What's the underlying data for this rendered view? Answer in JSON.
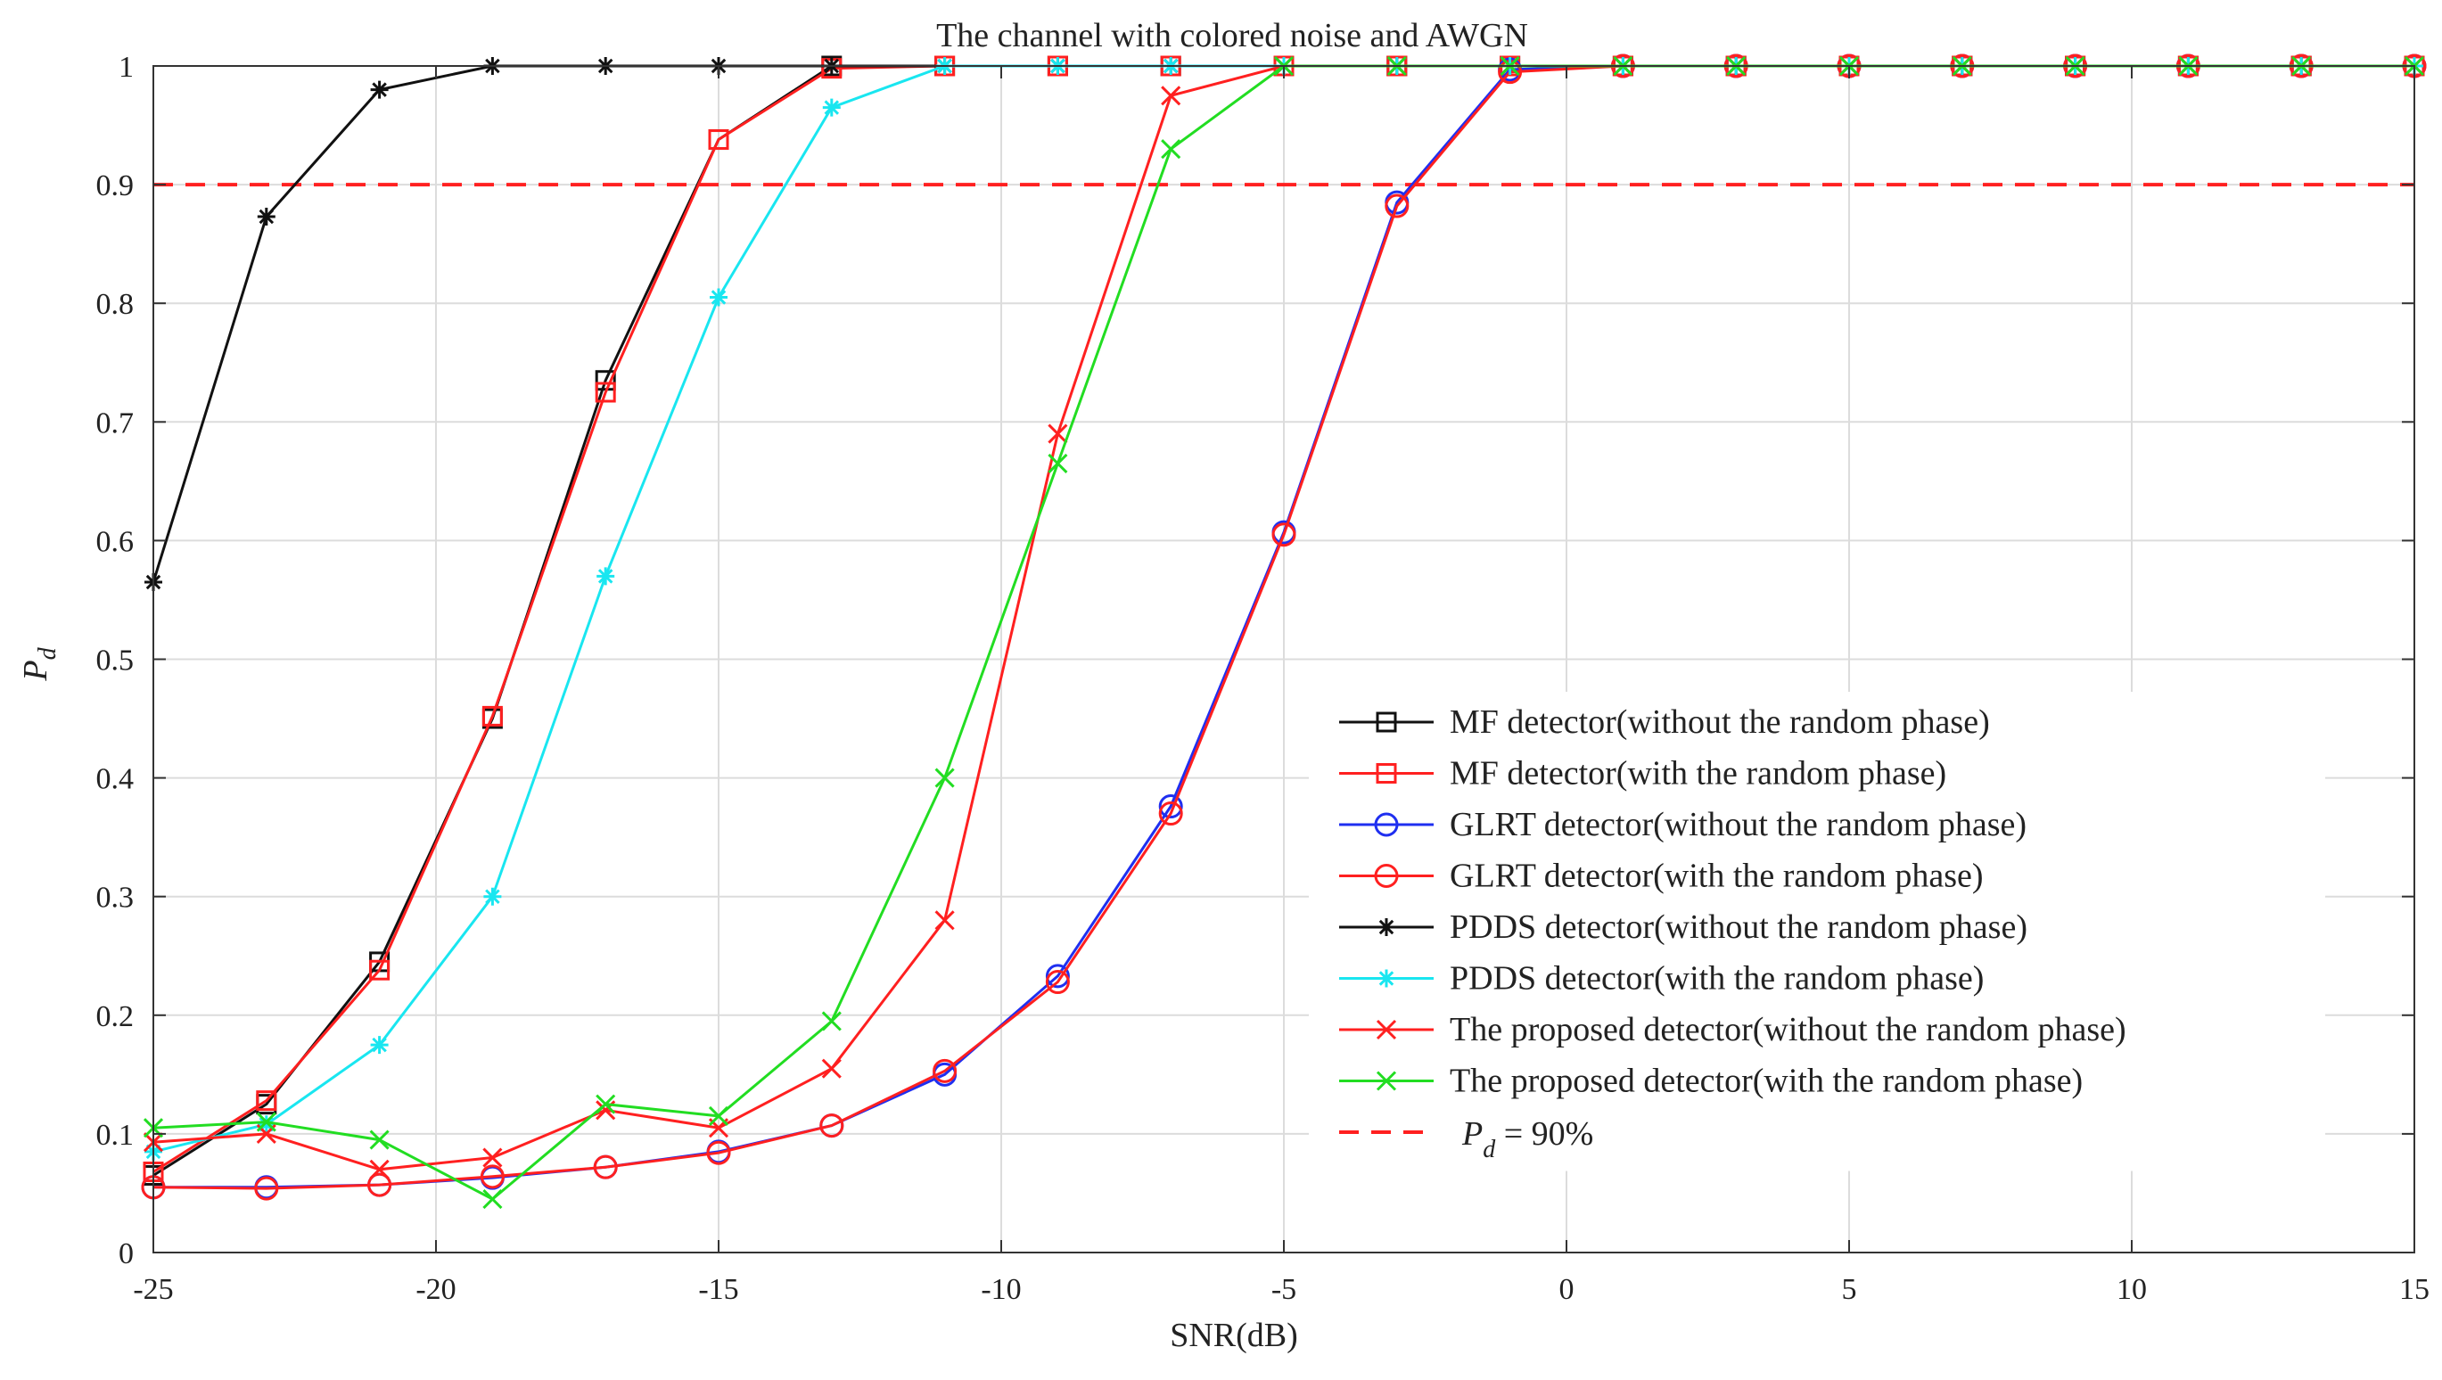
{
  "chart_data": {
    "type": "line",
    "title": "The channel with colored noise and AWGN",
    "xlabel": "SNR(dB)",
    "ylabel": {
      "main": "P",
      "sub": "d"
    },
    "xlim": [
      -25,
      15
    ],
    "ylim": [
      0,
      1
    ],
    "grid": true,
    "legend_position": "bottom-right",
    "x": [
      -25,
      -23,
      -21,
      -19,
      -17,
      -15,
      -13,
      -11,
      -9,
      -7,
      -5,
      -3,
      -1,
      1,
      3,
      5,
      7,
      9,
      11,
      13,
      15
    ],
    "xticks": [
      -25,
      -20,
      -15,
      -10,
      -5,
      0,
      5,
      10,
      15
    ],
    "yticks": [
      0,
      0.1,
      0.2,
      0.3,
      0.4,
      0.5,
      0.6,
      0.7,
      0.8,
      0.9,
      1
    ],
    "xtick_labels": [
      "-25",
      "-20",
      "-15",
      "-10",
      "-5",
      "0",
      "5",
      "10",
      "15"
    ],
    "ytick_labels": [
      "0",
      "0.1",
      "0.2",
      "0.3",
      "0.4",
      "0.5",
      "0.6",
      "0.7",
      "0.8",
      "0.9",
      "1"
    ],
    "series": [
      {
        "name": "MF detector(without the random phase)",
        "color": "#111111",
        "marker": "square",
        "values": [
          0.065,
          0.125,
          0.245,
          0.45,
          0.735,
          0.938,
          1,
          1,
          1,
          1,
          1,
          1,
          1,
          1,
          1,
          1,
          1,
          1,
          1,
          1,
          1
        ]
      },
      {
        "name": "MF detector(with the random phase)",
        "color": "#ff2020",
        "marker": "square",
        "values": [
          0.068,
          0.128,
          0.238,
          0.452,
          0.725,
          0.938,
          0.998,
          1,
          1,
          1,
          1,
          1,
          1,
          1,
          1,
          1,
          1,
          1,
          1,
          1,
          1
        ]
      },
      {
        "name": "GLRT detector(without the random phase)",
        "color": "#1f2ff0",
        "marker": "circle",
        "values": [
          0.055,
          0.055,
          0.057,
          0.063,
          0.072,
          0.085,
          0.107,
          0.15,
          0.233,
          0.376,
          0.607,
          0.885,
          0.997,
          1,
          1,
          1,
          1,
          1,
          1,
          1,
          1
        ]
      },
      {
        "name": "GLRT detector(with the random phase)",
        "color": "#ff2020",
        "marker": "circle",
        "values": [
          0.055,
          0.054,
          0.057,
          0.064,
          0.072,
          0.084,
          0.107,
          0.153,
          0.228,
          0.37,
          0.605,
          0.882,
          0.995,
          1,
          1,
          1,
          1,
          1,
          1,
          1,
          1
        ]
      },
      {
        "name": "PDDS detector(without the random phase)",
        "color": "#111111",
        "marker": "star",
        "values": [
          0.565,
          0.873,
          0.98,
          1,
          1,
          1,
          1,
          1,
          1,
          1,
          1,
          1,
          1,
          1,
          1,
          1,
          1,
          1,
          1,
          1,
          1
        ]
      },
      {
        "name": "PDDS detector(with the random phase)",
        "color": "#19e6f0",
        "marker": "star",
        "values": [
          0.085,
          0.108,
          0.175,
          0.3,
          0.57,
          0.805,
          0.965,
          1,
          1,
          1,
          1,
          1,
          1,
          1,
          1,
          1,
          1,
          1,
          1,
          1,
          1
        ]
      },
      {
        "name": "The proposed detector(without the random phase)",
        "color": "#ff2020",
        "marker": "x",
        "values": [
          0.093,
          0.1,
          0.07,
          0.08,
          0.12,
          0.105,
          0.155,
          0.28,
          0.69,
          0.975,
          1,
          1,
          1,
          1,
          1,
          1,
          1,
          1,
          1,
          1,
          1
        ]
      },
      {
        "name": "The proposed detector(with the random phase)",
        "color": "#22dd22",
        "marker": "x",
        "values": [
          0.105,
          0.11,
          0.095,
          0.045,
          0.125,
          0.115,
          0.195,
          0.4,
          0.665,
          0.93,
          1,
          1,
          1,
          1,
          1,
          1,
          1,
          1,
          1,
          1,
          1
        ]
      }
    ],
    "reference_line": {
      "label_main": "P",
      "label_sub": "d",
      "label_rest": " = 90%",
      "value": 0.9,
      "color": "#ff2020"
    }
  }
}
